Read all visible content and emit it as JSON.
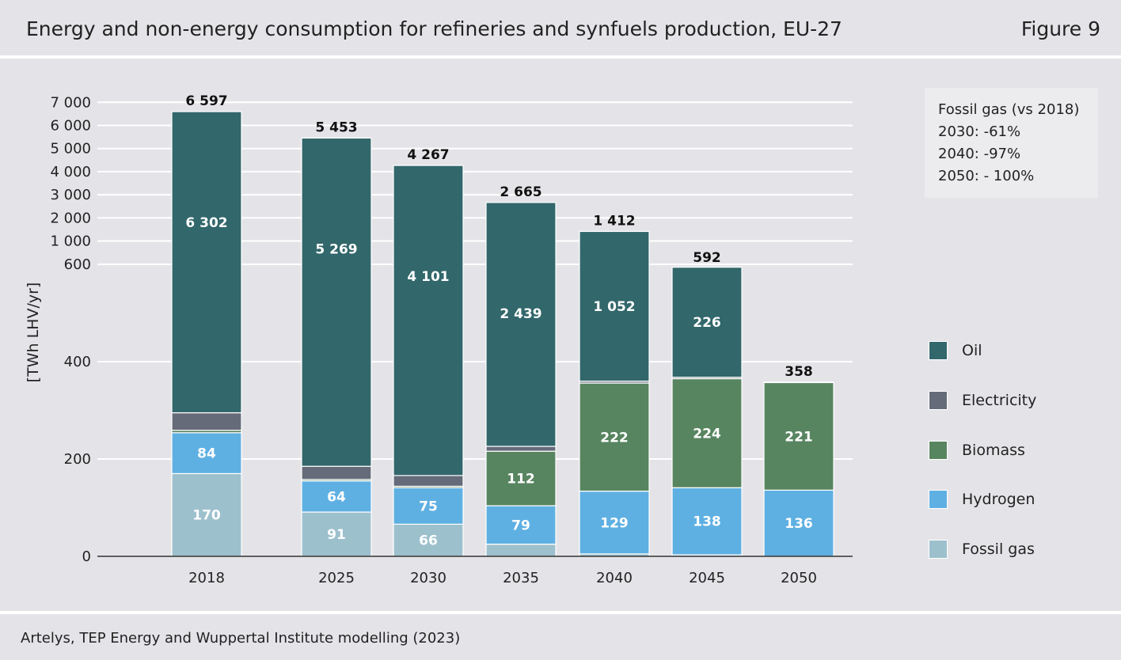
{
  "header": {
    "title": "Energy and non-energy consumption for refineries and synfuels production, EU-27",
    "figure_label": "Figure 9"
  },
  "footer": {
    "source": "Artelys, TEP Energy and Wuppertal Institute modelling (2023)"
  },
  "note": {
    "title": "Fossil gas (vs 2018)",
    "lines": [
      "2030: -61%",
      "2040: -97%",
      "2050: - 100%"
    ]
  },
  "legend": [
    {
      "label": "Oil",
      "color": "#32676b"
    },
    {
      "label": "Electricity",
      "color": "#666b7a"
    },
    {
      "label": "Biomass",
      "color": "#578560"
    },
    {
      "label": "Hydrogen",
      "color": "#5fb0e2"
    },
    {
      "label": "Fossil gas",
      "color": "#9dc0cd"
    }
  ],
  "chart_data": {
    "type": "bar",
    "stacked": true,
    "title": "Energy and non-energy consumption for refineries and synfuels production, EU-27",
    "xlabel": "",
    "ylabel": "[TWh LHV/yr]",
    "axis_break": "linear 0–600 below, compressed 600–7000 above",
    "y_ticks_lower": [
      "0",
      "200",
      "400",
      "600"
    ],
    "y_ticks_upper": [
      "1000",
      "2000",
      "3000",
      "4000",
      "5000",
      "6000",
      "7000"
    ],
    "y_tick_labels": [
      "0",
      "200",
      "400",
      "600",
      "1 000",
      "2 000",
      "3 000",
      "4 000",
      "5 000",
      "6 000",
      "7 000"
    ],
    "categories": [
      "2018",
      "2025",
      "2030",
      "2035",
      "2040",
      "2045",
      "2050"
    ],
    "series": [
      {
        "name": "Fossil gas",
        "color": "#9dc0cd",
        "values": [
          170,
          91,
          66,
          25,
          5,
          3,
          0
        ],
        "labels": [
          "170",
          "91",
          "66",
          "",
          "",
          "",
          ""
        ]
      },
      {
        "name": "Hydrogen",
        "color": "#5fb0e2",
        "values": [
          84,
          64,
          75,
          79,
          129,
          138,
          136
        ],
        "labels": [
          "84",
          "64",
          "75",
          "79",
          "129",
          "138",
          "136"
        ]
      },
      {
        "name": "Biomass",
        "color": "#578560",
        "values": [
          5,
          3,
          3,
          112,
          222,
          224,
          221
        ],
        "labels": [
          "",
          "",
          "",
          "112",
          "222",
          "224",
          "221"
        ]
      },
      {
        "name": "Electricity",
        "color": "#666b7a",
        "values": [
          36,
          27,
          22,
          10,
          4,
          3,
          1
        ],
        "labels": [
          "",
          "",
          "",
          "",
          "",
          "",
          ""
        ]
      },
      {
        "name": "Oil",
        "color": "#32676b",
        "values": [
          6302,
          5269,
          4101,
          2439,
          1052,
          226,
          0
        ],
        "labels": [
          "6 302",
          "5 269",
          "4 101",
          "2 439",
          "1 052",
          "226",
          ""
        ]
      }
    ],
    "totals": [
      6597,
      5453,
      4267,
      2665,
      1412,
      592,
      358
    ],
    "total_labels": [
      "6 597",
      "5 453",
      "4 267",
      "2 665",
      "1 412",
      "592",
      "358"
    ],
    "legend_position": "right"
  }
}
